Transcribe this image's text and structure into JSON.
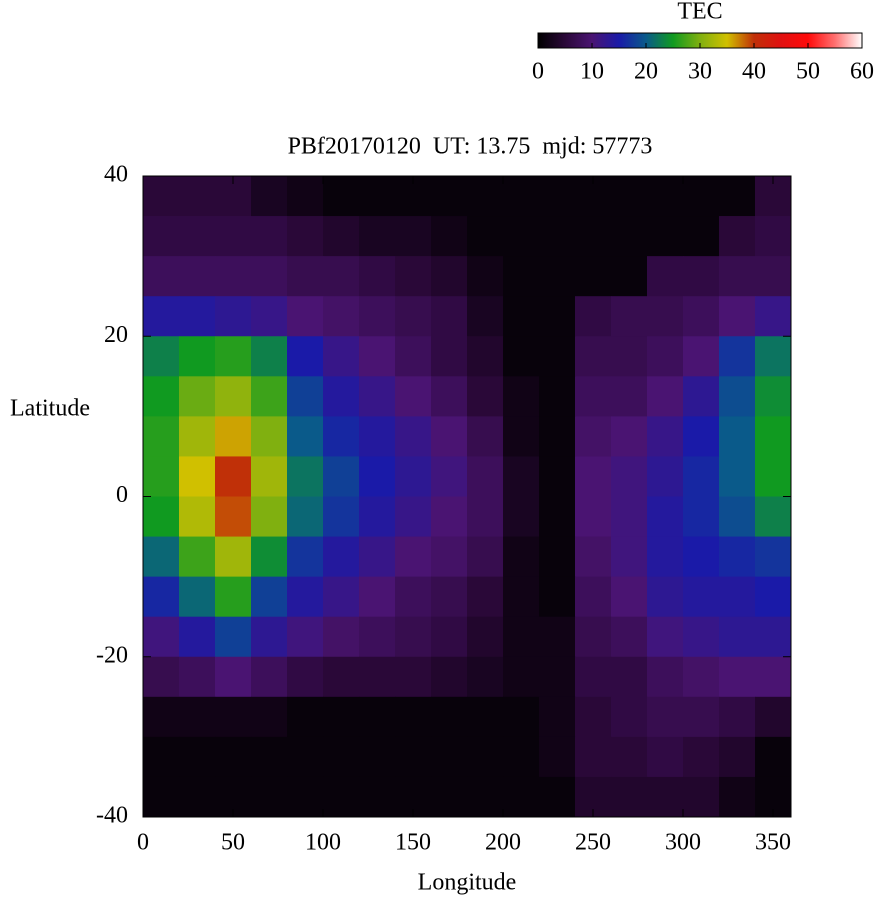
{
  "chart_data": {
    "type": "heatmap",
    "title": "PBf20170120  UT: 13.75  mjd: 57773",
    "x_label": "Longitude",
    "y_label": "Latitude",
    "xlim": [
      0,
      360
    ],
    "ylim": [
      -40,
      40
    ],
    "xticks": [
      0,
      50,
      100,
      150,
      200,
      250,
      300,
      350
    ],
    "yticks": [
      -40,
      -20,
      0,
      20,
      40
    ],
    "zlim": [
      0,
      60
    ],
    "colorbar": {
      "label": "TEC",
      "ticks": [
        0,
        10,
        20,
        30,
        40,
        50,
        60
      ]
    },
    "colors": [
      "#000000",
      "#2a0838",
      "#4a1472",
      "#1a1aa8",
      "#0a5a8a",
      "#109a20",
      "#80b010",
      "#d0c000",
      "#c03008",
      "#e01010",
      "#ff0a0a",
      "#ff7070",
      "#ffffff"
    ],
    "z": [
      [
        5,
        5,
        5,
        3,
        2,
        1,
        1,
        1,
        1,
        1,
        1,
        1,
        1,
        1,
        1,
        1,
        1,
        5
      ],
      [
        6,
        6,
        6,
        6,
        5,
        4,
        3,
        3,
        2,
        1,
        1,
        1,
        1,
        1,
        1,
        1,
        5,
        6
      ],
      [
        8,
        8,
        8,
        8,
        7,
        7,
        6,
        5,
        4,
        2,
        1,
        1,
        1,
        1,
        6,
        6,
        7,
        7
      ],
      [
        14,
        14,
        13,
        12,
        10,
        9,
        8,
        7,
        6,
        3,
        1,
        1,
        6,
        7,
        7,
        8,
        10,
        12
      ],
      [
        23,
        25,
        26,
        23,
        15,
        12,
        10,
        8,
        6,
        4,
        1,
        1,
        7,
        7,
        8,
        10,
        17,
        22
      ],
      [
        25,
        29,
        31,
        27,
        18,
        14,
        12,
        10,
        8,
        5,
        2,
        1,
        8,
        8,
        10,
        13,
        19,
        24
      ],
      [
        26,
        32,
        36,
        30,
        20,
        16,
        14,
        12,
        10,
        7,
        2,
        1,
        9,
        10,
        12,
        15,
        20,
        25
      ],
      [
        26,
        35,
        40,
        32,
        22,
        18,
        15,
        13,
        11,
        8,
        3,
        1,
        10,
        11,
        13,
        16,
        20,
        25
      ],
      [
        25,
        33,
        39,
        30,
        21,
        17,
        14,
        12,
        10,
        8,
        3,
        1,
        10,
        11,
        14,
        16,
        19,
        23
      ],
      [
        21,
        27,
        32,
        24,
        17,
        14,
        12,
        10,
        9,
        7,
        2,
        1,
        9,
        11,
        14,
        15,
        16,
        17
      ],
      [
        16,
        21,
        26,
        18,
        14,
        12,
        10,
        8,
        7,
        5,
        2,
        1,
        8,
        10,
        13,
        14,
        14,
        15
      ],
      [
        11,
        14,
        18,
        13,
        11,
        9,
        8,
        7,
        6,
        4,
        2,
        2,
        7,
        8,
        11,
        12,
        13,
        13
      ],
      [
        7,
        8,
        10,
        8,
        6,
        5,
        5,
        5,
        4,
        3,
        2,
        2,
        6,
        6,
        8,
        9,
        10,
        10
      ],
      [
        2,
        2,
        2,
        2,
        1,
        1,
        1,
        1,
        1,
        1,
        1,
        2,
        5,
        6,
        7,
        7,
        6,
        4
      ],
      [
        1,
        1,
        1,
        1,
        1,
        1,
        1,
        1,
        1,
        1,
        1,
        2,
        5,
        5,
        6,
        5,
        4,
        1
      ],
      [
        1,
        1,
        1,
        1,
        1,
        1,
        1,
        1,
        1,
        1,
        1,
        1,
        4,
        4,
        4,
        4,
        2,
        1
      ]
    ]
  }
}
